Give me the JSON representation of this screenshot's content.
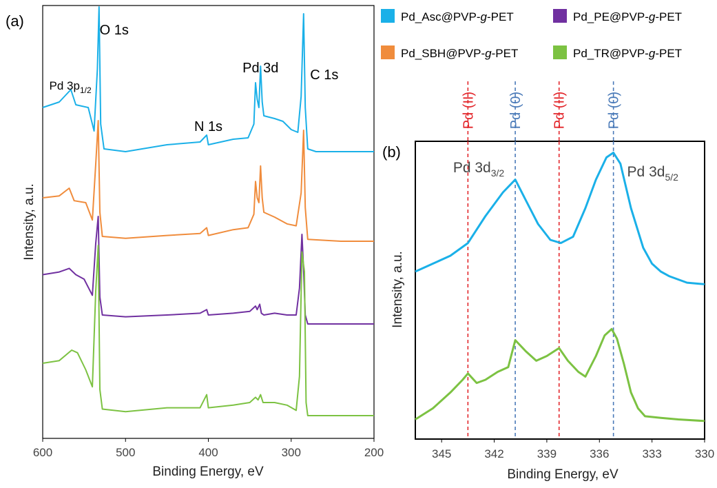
{
  "legend": [
    {
      "name": "Pd_Asc@PVP-",
      "g": "g",
      "tail": "-PET",
      "color": "#1ab0e8"
    },
    {
      "name": "Pd_PE@PVP-",
      "g": "g",
      "tail": "-PET",
      "color": "#7030a0"
    },
    {
      "name": "Pd_SBH@PVP-",
      "g": "g",
      "tail": "-PET",
      "color": "#f08c3c"
    },
    {
      "name": "Pd_TR@PVP-",
      "g": "g",
      "tail": "-PET",
      "color": "#7cc242"
    }
  ],
  "chart_data": [
    {
      "panel": "(a)",
      "type": "line",
      "xlabel": "Binding Energy, eV",
      "ylabel": "Intensity, a.u.",
      "xlim": [
        600,
        200
      ],
      "xticks": [
        "600",
        "500",
        "400",
        "300",
        "200"
      ],
      "peak_labels": [
        {
          "text": "Pd 3p",
          "sub": "1/2",
          "x": 565
        },
        {
          "text": "O 1s",
          "x": 532
        },
        {
          "text": "N 1s",
          "x": 400
        },
        {
          "text": "Pd 3d",
          "x": 337
        },
        {
          "text": "C 1s",
          "x": 285
        }
      ],
      "series": [
        {
          "name": "Pd_Asc@PVP-g-PET",
          "color": "#1ab0e8",
          "offset": 3.0,
          "points": [
            [
              600,
              0.32
            ],
            [
              580,
              0.36
            ],
            [
              566,
              0.45
            ],
            [
              560,
              0.34
            ],
            [
              545,
              0.32
            ],
            [
              538,
              0.15
            ],
            [
              534,
              0.6
            ],
            [
              532,
              1.05
            ],
            [
              530,
              0.2
            ],
            [
              526,
              0.02
            ],
            [
              500,
              0.0
            ],
            [
              450,
              0.05
            ],
            [
              410,
              0.07
            ],
            [
              402,
              0.12
            ],
            [
              400,
              0.05
            ],
            [
              370,
              0.09
            ],
            [
              352,
              0.1
            ],
            [
              345,
              0.2
            ],
            [
              343,
              0.5
            ],
            [
              341,
              0.38
            ],
            [
              339,
              0.32
            ],
            [
              337,
              0.62
            ],
            [
              335,
              0.36
            ],
            [
              333,
              0.26
            ],
            [
              320,
              0.24
            ],
            [
              310,
              0.22
            ],
            [
              300,
              0.16
            ],
            [
              292,
              0.14
            ],
            [
              288,
              0.4
            ],
            [
              285,
              1.0
            ],
            [
              283,
              0.32
            ],
            [
              280,
              0.02
            ],
            [
              270,
              0.0
            ],
            [
              240,
              0.0
            ],
            [
              200,
              0.0
            ]
          ]
        },
        {
          "name": "Pd_SBH@PVP-g-PET",
          "color": "#f08c3c",
          "offset": 2.0,
          "points": [
            [
              600,
              0.45
            ],
            [
              580,
              0.47
            ],
            [
              568,
              0.55
            ],
            [
              562,
              0.42
            ],
            [
              548,
              0.4
            ],
            [
              540,
              0.22
            ],
            [
              536,
              0.8
            ],
            [
              533,
              1.25
            ],
            [
              531,
              0.3
            ],
            [
              528,
              0.05
            ],
            [
              500,
              0.03
            ],
            [
              450,
              0.06
            ],
            [
              410,
              0.08
            ],
            [
              402,
              0.14
            ],
            [
              400,
              0.06
            ],
            [
              370,
              0.12
            ],
            [
              352,
              0.14
            ],
            [
              345,
              0.28
            ],
            [
              343,
              0.62
            ],
            [
              341,
              0.45
            ],
            [
              339,
              0.4
            ],
            [
              337,
              0.78
            ],
            [
              335,
              0.45
            ],
            [
              333,
              0.3
            ],
            [
              320,
              0.25
            ],
            [
              305,
              0.18
            ],
            [
              294,
              0.16
            ],
            [
              288,
              0.5
            ],
            [
              285,
              1.15
            ],
            [
              283,
              0.35
            ],
            [
              280,
              0.02
            ],
            [
              240,
              0.0
            ],
            [
              200,
              0.0
            ]
          ]
        },
        {
          "name": "Pd_PE@PVP-g-PET",
          "color": "#7030a0",
          "offset": 1.0,
          "points": [
            [
              600,
              0.55
            ],
            [
              580,
              0.58
            ],
            [
              568,
              0.62
            ],
            [
              560,
              0.55
            ],
            [
              550,
              0.5
            ],
            [
              540,
              0.32
            ],
            [
              536,
              0.9
            ],
            [
              533,
              1.2
            ],
            [
              531,
              0.3
            ],
            [
              528,
              0.1
            ],
            [
              500,
              0.08
            ],
            [
              450,
              0.1
            ],
            [
              410,
              0.12
            ],
            [
              402,
              0.16
            ],
            [
              400,
              0.1
            ],
            [
              370,
              0.12
            ],
            [
              350,
              0.14
            ],
            [
              343,
              0.2
            ],
            [
              341,
              0.16
            ],
            [
              338,
              0.22
            ],
            [
              336,
              0.12
            ],
            [
              333,
              0.1
            ],
            [
              320,
              0.12
            ],
            [
              305,
              0.1
            ],
            [
              294,
              0.1
            ],
            [
              290,
              0.4
            ],
            [
              287,
              1.0
            ],
            [
              285,
              0.6
            ],
            [
              283,
              0.1
            ],
            [
              280,
              0.0
            ],
            [
              240,
              0.0
            ],
            [
              200,
              0.0
            ]
          ]
        },
        {
          "name": "Pd_TR@PVP-g-PET",
          "color": "#7cc242",
          "offset": 0.0,
          "points": [
            [
              600,
              0.4
            ],
            [
              580,
              0.42
            ],
            [
              565,
              0.5
            ],
            [
              558,
              0.48
            ],
            [
              548,
              0.35
            ],
            [
              540,
              0.22
            ],
            [
              536,
              0.95
            ],
            [
              533,
              1.3
            ],
            [
              531,
              0.2
            ],
            [
              528,
              0.05
            ],
            [
              500,
              0.03
            ],
            [
              450,
              0.06
            ],
            [
              410,
              0.06
            ],
            [
              402,
              0.16
            ],
            [
              400,
              0.06
            ],
            [
              370,
              0.08
            ],
            [
              350,
              0.1
            ],
            [
              343,
              0.14
            ],
            [
              340,
              0.12
            ],
            [
              337,
              0.16
            ],
            [
              334,
              0.1
            ],
            [
              320,
              0.1
            ],
            [
              305,
              0.08
            ],
            [
              294,
              0.04
            ],
            [
              290,
              0.3
            ],
            [
              287,
              1.25
            ],
            [
              284,
              1.1
            ],
            [
              282,
              0.1
            ],
            [
              280,
              0.0
            ],
            [
              240,
              0.0
            ],
            [
              200,
              0.0
            ]
          ]
        }
      ]
    },
    {
      "panel": "(b)",
      "type": "line",
      "xlabel": "Binding Energy, eV",
      "ylabel": "Intensity, a.u.",
      "xlim": [
        346.5,
        330
      ],
      "xticks": [
        "345",
        "342",
        "339",
        "336",
        "333",
        "330"
      ],
      "peak_labels": [
        {
          "text": "Pd 3d",
          "sub": "3/2",
          "x": 341
        },
        {
          "text": "Pd 3d",
          "sub": "5/2",
          "x": 335
        }
      ],
      "reference_lines": [
        {
          "label": "Pd (II)",
          "x": 343.5,
          "color": "#e3262b"
        },
        {
          "label": "Pd (0)",
          "x": 340.8,
          "color": "#4a7ab8"
        },
        {
          "label": "Pd (II)",
          "x": 338.3,
          "color": "#e3262b"
        },
        {
          "label": "Pd (0)",
          "x": 335.2,
          "color": "#4a7ab8"
        }
      ],
      "series": [
        {
          "name": "Pd_Asc@PVP-g-PET",
          "color": "#1ab0e8",
          "offset": 1.0,
          "points": [
            [
              346.5,
              0.2
            ],
            [
              345.5,
              0.25
            ],
            [
              344.5,
              0.3
            ],
            [
              343.5,
              0.38
            ],
            [
              342.5,
              0.55
            ],
            [
              341.5,
              0.7
            ],
            [
              340.8,
              0.78
            ],
            [
              340.2,
              0.65
            ],
            [
              339.5,
              0.5
            ],
            [
              338.8,
              0.4
            ],
            [
              338.2,
              0.38
            ],
            [
              337.5,
              0.42
            ],
            [
              336.8,
              0.6
            ],
            [
              336.2,
              0.78
            ],
            [
              335.6,
              0.92
            ],
            [
              335.2,
              0.95
            ],
            [
              334.8,
              0.88
            ],
            [
              334.2,
              0.6
            ],
            [
              333.5,
              0.35
            ],
            [
              333.0,
              0.25
            ],
            [
              332.5,
              0.2
            ],
            [
              332.0,
              0.17
            ],
            [
              331.0,
              0.13
            ],
            [
              330.0,
              0.12
            ]
          ]
        },
        {
          "name": "Pd_TR@PVP-g-PET",
          "color": "#7cc242",
          "offset": 0.0,
          "points": [
            [
              346.5,
              0.05
            ],
            [
              345.5,
              0.12
            ],
            [
              344.5,
              0.22
            ],
            [
              343.8,
              0.3
            ],
            [
              343.5,
              0.34
            ],
            [
              343.0,
              0.28
            ],
            [
              342.5,
              0.3
            ],
            [
              341.8,
              0.35
            ],
            [
              341.2,
              0.38
            ],
            [
              340.8,
              0.55
            ],
            [
              340.2,
              0.48
            ],
            [
              339.6,
              0.42
            ],
            [
              339.0,
              0.45
            ],
            [
              338.3,
              0.5
            ],
            [
              337.8,
              0.42
            ],
            [
              337.2,
              0.35
            ],
            [
              336.8,
              0.32
            ],
            [
              336.2,
              0.45
            ],
            [
              335.7,
              0.58
            ],
            [
              335.3,
              0.62
            ],
            [
              335.0,
              0.56
            ],
            [
              334.6,
              0.4
            ],
            [
              334.2,
              0.22
            ],
            [
              333.8,
              0.12
            ],
            [
              333.4,
              0.07
            ],
            [
              332.5,
              0.06
            ],
            [
              331.5,
              0.05
            ],
            [
              330.0,
              0.04
            ]
          ]
        }
      ]
    }
  ]
}
